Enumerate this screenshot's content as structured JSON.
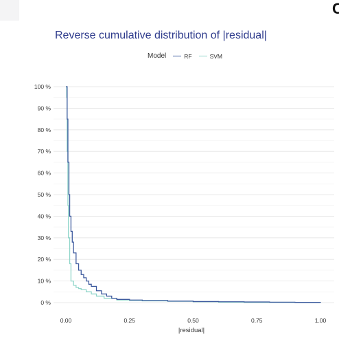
{
  "chart_data": {
    "type": "line",
    "title": "Reverse cumulative distribution of |residual|",
    "xlabel": "|residual|",
    "ylabel": "",
    "legend": {
      "title": "Model",
      "placement": "top"
    },
    "xlim": [
      0,
      1
    ],
    "ylim": [
      0,
      1
    ],
    "x_ticks": [
      "0.00",
      "0.25",
      "0.50",
      "0.75",
      "1.00"
    ],
    "y_ticks": [
      "0 %",
      "10 %",
      "20 %",
      "30 %",
      "40 %",
      "50 %",
      "60 %",
      "70 %",
      "80 %",
      "90 %",
      "100 %"
    ],
    "grid": true,
    "series": [
      {
        "name": "RF",
        "color": "#3d5a9e",
        "x": [
          0,
          0.003,
          0.005,
          0.008,
          0.012,
          0.015,
          0.02,
          0.025,
          0.03,
          0.04,
          0.05,
          0.06,
          0.07,
          0.08,
          0.09,
          0.1,
          0.12,
          0.14,
          0.16,
          0.18,
          0.2,
          0.25,
          0.3,
          0.4,
          0.5,
          0.6,
          0.7,
          0.8,
          0.9,
          1.0
        ],
        "y": [
          1.0,
          1.0,
          0.85,
          0.65,
          0.5,
          0.4,
          0.33,
          0.28,
          0.23,
          0.18,
          0.15,
          0.13,
          0.115,
          0.1,
          0.085,
          0.075,
          0.055,
          0.04,
          0.03,
          0.02,
          0.015,
          0.012,
          0.01,
          0.007,
          0.005,
          0.004,
          0.003,
          0.002,
          0.001,
          0.0
        ]
      },
      {
        "name": "SVM",
        "color": "#8fd5c9",
        "x": [
          0,
          0.003,
          0.005,
          0.008,
          0.01,
          0.015,
          0.02,
          0.03,
          0.04,
          0.05,
          0.06,
          0.08,
          0.1,
          0.12,
          0.15,
          0.2,
          0.25,
          0.3,
          0.4,
          0.5,
          0.6,
          0.7,
          1.0
        ],
        "y": [
          1.0,
          0.95,
          0.7,
          0.45,
          0.3,
          0.18,
          0.1,
          0.08,
          0.07,
          0.065,
          0.06,
          0.05,
          0.04,
          0.03,
          0.02,
          0.012,
          0.01,
          0.008,
          0.006,
          0.004,
          0.002,
          0.001,
          0.0
        ]
      }
    ]
  }
}
